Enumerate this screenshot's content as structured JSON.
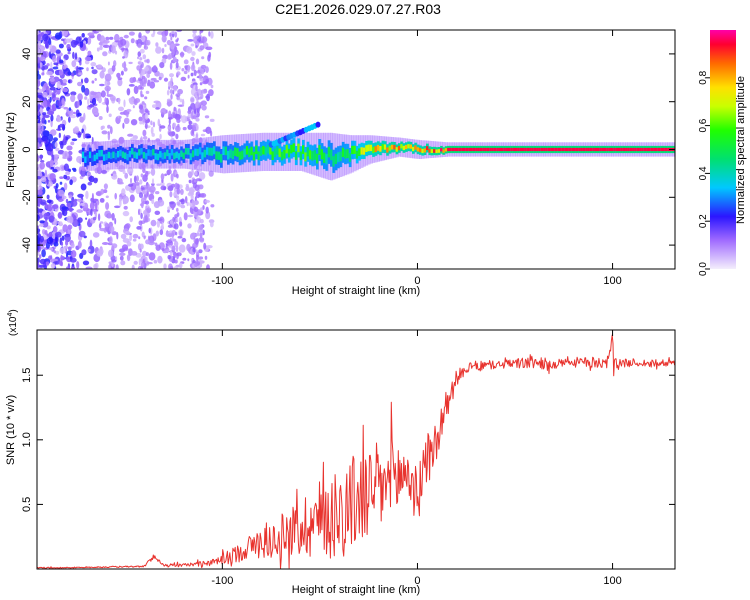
{
  "title": "C2E1.2026.029.07.27.R03",
  "colors": {
    "snr_line": "#e8332e",
    "axis": "#000000",
    "background": "#ffffff"
  },
  "chart_data": [
    {
      "type": "heatmap",
      "xlabel": "Height of straight line (km)",
      "ylabel": "Frequency (Hz)",
      "xlim": [
        -195,
        132
      ],
      "ylim": [
        -50,
        50
      ],
      "x_ticks": [
        {
          "value": -100,
          "label": "-100"
        },
        {
          "value": 0,
          "label": "0"
        },
        {
          "value": 100,
          "label": "100"
        }
      ],
      "y_ticks": [
        {
          "value": 40,
          "label": "40"
        },
        {
          "value": 20,
          "label": "20"
        },
        {
          "value": 0,
          "label": "0"
        },
        {
          "value": -20,
          "label": "-20"
        },
        {
          "value": -40,
          "label": "-40"
        }
      ],
      "colorbar": {
        "label": "Normalized spectral amplitude",
        "range": [
          0,
          1
        ],
        "ticks": [
          {
            "value": 0.0,
            "label": "0.0"
          },
          {
            "value": 0.2,
            "label": "0.2"
          },
          {
            "value": 0.4,
            "label": "0.4"
          },
          {
            "value": 0.6,
            "label": "0.6"
          },
          {
            "value": 0.8,
            "label": "0.8"
          }
        ]
      },
      "ridge": {
        "description": "carrier line near 0 Hz",
        "x": [
          -170,
          -150,
          -120,
          -100,
          -80,
          -60,
          -45,
          -35,
          -25,
          -10,
          0,
          15,
          40,
          70,
          100,
          130
        ],
        "center_hz": [
          -3,
          -2,
          -2,
          -2,
          -1,
          -1,
          -3,
          -2,
          0,
          1,
          0,
          0,
          0,
          0,
          0,
          0
        ],
        "half_width_hz": [
          3,
          3,
          3,
          4,
          4,
          4,
          5,
          4,
          3,
          2,
          2,
          1.5,
          1.5,
          1.5,
          1.5,
          1.5
        ],
        "amplitude": [
          0.35,
          0.38,
          0.42,
          0.45,
          0.55,
          0.6,
          0.5,
          0.55,
          0.75,
          0.85,
          0.8,
          0.95,
          0.95,
          0.95,
          0.95,
          0.95
        ]
      }
    },
    {
      "type": "line",
      "xlabel": "Height of straight line (km)",
      "ylabel": "SNR (10 * v/v)",
      "multiplier_label": "(x10",
      "multiplier_exp": "4",
      "xlim": [
        -195,
        132
      ],
      "ylim": [
        0,
        1.85
      ],
      "x_ticks": [
        {
          "value": -100,
          "label": "-100"
        },
        {
          "value": 0,
          "label": "0"
        },
        {
          "value": 100,
          "label": "100"
        }
      ],
      "y_ticks": [
        {
          "value": 0.5,
          "label": "0.5"
        },
        {
          "value": 1.0,
          "label": "1.0"
        },
        {
          "value": 1.5,
          "label": "1.5"
        }
      ],
      "series": [
        {
          "name": "SNR",
          "x": [
            -195,
            -180,
            -160,
            -140,
            -135,
            -130,
            -120,
            -105,
            -95,
            -85,
            -75,
            -65,
            -55,
            -45,
            -35,
            -25,
            -15,
            -5,
            0,
            5,
            10,
            15,
            20,
            25,
            30,
            40,
            50,
            60,
            70,
            80,
            90,
            98,
            100,
            102,
            110,
            120,
            132
          ],
          "y": [
            0.01,
            0.01,
            0.015,
            0.02,
            0.1,
            0.03,
            0.03,
            0.05,
            0.1,
            0.18,
            0.22,
            0.28,
            0.36,
            0.42,
            0.5,
            0.58,
            0.66,
            0.75,
            0.55,
            0.85,
            1.0,
            1.25,
            1.48,
            1.55,
            1.57,
            1.58,
            1.59,
            1.6,
            1.58,
            1.6,
            1.6,
            1.6,
            1.75,
            1.58,
            1.6,
            1.59,
            1.6
          ],
          "spread": [
            0.004,
            0.004,
            0.005,
            0.006,
            0.02,
            0.01,
            0.012,
            0.025,
            0.06,
            0.1,
            0.14,
            0.2,
            0.28,
            0.35,
            0.38,
            0.38,
            0.34,
            0.28,
            0.2,
            0.22,
            0.18,
            0.12,
            0.06,
            0.04,
            0.04,
            0.03,
            0.04,
            0.05,
            0.04,
            0.04,
            0.04,
            0.05,
            0.12,
            0.04,
            0.03,
            0.03,
            0.03
          ]
        }
      ]
    }
  ]
}
